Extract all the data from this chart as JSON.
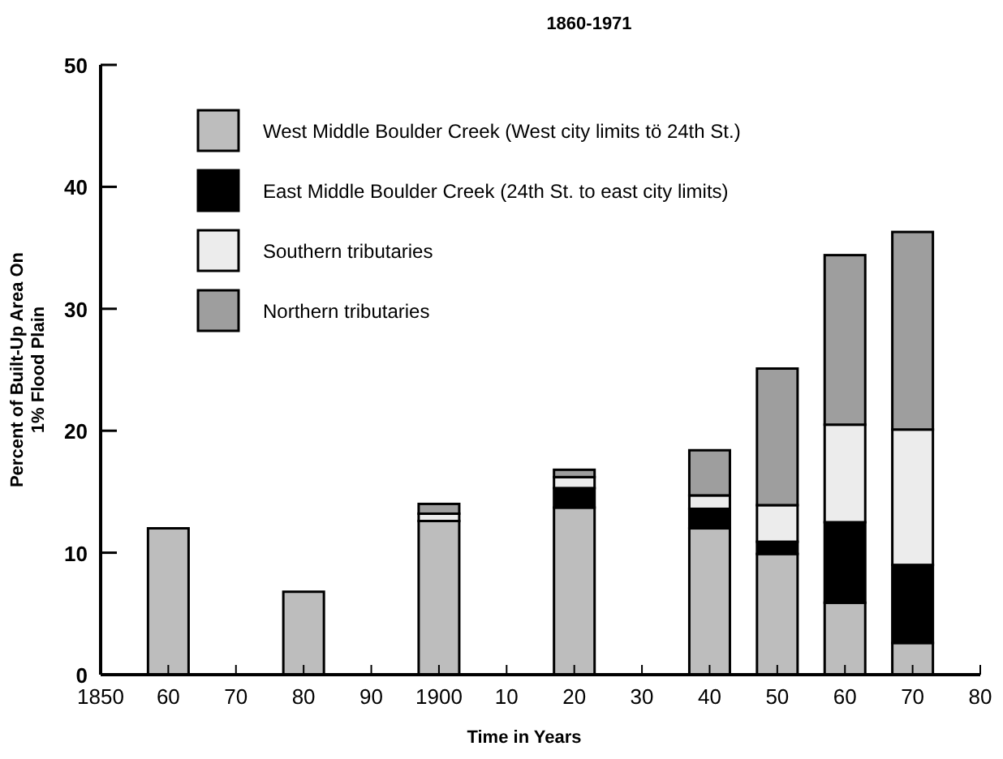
{
  "chart_data": {
    "type": "bar",
    "stacked": true,
    "title": "1860-1971",
    "xlabel": "Time in Years",
    "ylabel": "Percent of Built-Up Area On\n1% Flood Plain",
    "x": [
      1860,
      1880,
      1900,
      1920,
      1940,
      1950,
      1960,
      1970
    ],
    "series": [
      {
        "name": "West Middle Boulder Creek (West city limits tö 24th St.)",
        "color": "#bdbdbd",
        "values": [
          12,
          6.8,
          12.6,
          13.7,
          12.0,
          9.9,
          5.9,
          2.6
        ]
      },
      {
        "name": "East Middle Boulder Creek (24th St. to east city limits)",
        "color": "#000000",
        "values": [
          0,
          0,
          0,
          1.6,
          1.6,
          1.0,
          6.6,
          6.4
        ]
      },
      {
        "name": "Southern tributaries",
        "color": "#ececec",
        "values": [
          0,
          0,
          0.6,
          0.9,
          1.1,
          3.0,
          8.0,
          11.1
        ]
      },
      {
        "name": "Northern tributaries",
        "color": "#9e9e9e",
        "values": [
          0,
          0,
          0.8,
          0.6,
          3.7,
          11.2,
          13.9,
          16.2
        ]
      }
    ],
    "xlim": [
      1850,
      1980
    ],
    "xticks": [
      {
        "value": 1850,
        "label": "1850"
      },
      {
        "value": 1860,
        "label": "60"
      },
      {
        "value": 1870,
        "label": "70"
      },
      {
        "value": 1880,
        "label": "80"
      },
      {
        "value": 1890,
        "label": "90"
      },
      {
        "value": 1900,
        "label": "1900"
      },
      {
        "value": 1910,
        "label": "10"
      },
      {
        "value": 1920,
        "label": "20"
      },
      {
        "value": 1930,
        "label": "30"
      },
      {
        "value": 1940,
        "label": "40"
      },
      {
        "value": 1950,
        "label": "50"
      },
      {
        "value": 1960,
        "label": "60"
      },
      {
        "value": 1970,
        "label": "70"
      },
      {
        "value": 1980,
        "label": "80"
      }
    ],
    "ylim": [
      0,
      50
    ],
    "yticks": [
      0,
      10,
      20,
      30,
      40,
      50
    ],
    "legend": "top left"
  }
}
